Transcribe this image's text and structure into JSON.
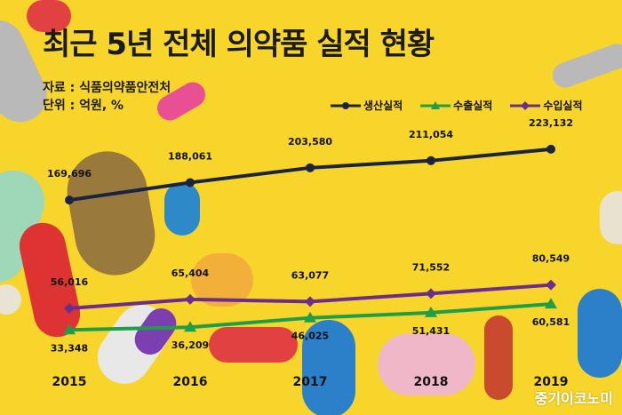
{
  "title": "최근 5년 전체 의약품 실적 현황",
  "source": "자료 : 식품의약품안전처",
  "unit": "단위 : 억원, %",
  "watermark": "중기이코노미",
  "colors": {
    "background": "#f8d52a",
    "production": "#1a2440",
    "export": "#1f9e4a",
    "import": "#6b2e8f"
  },
  "chart_data": {
    "type": "line",
    "categories": [
      "2015",
      "2016",
      "2017",
      "2018",
      "2019"
    ],
    "series": [
      {
        "name": "생산실적",
        "color": "#1a2440",
        "marker": "circle",
        "values": [
          169696,
          188061,
          203580,
          211054,
          223132
        ]
      },
      {
        "name": "수출실적",
        "color": "#1f9e4a",
        "marker": "triangle",
        "values": [
          33348,
          36209,
          46025,
          51431,
          60581
        ]
      },
      {
        "name": "수입실적",
        "color": "#6b2e8f",
        "marker": "diamond",
        "values": [
          56016,
          65404,
          63077,
          71552,
          80549
        ]
      }
    ],
    "legend": "top-right",
    "grid": false
  }
}
